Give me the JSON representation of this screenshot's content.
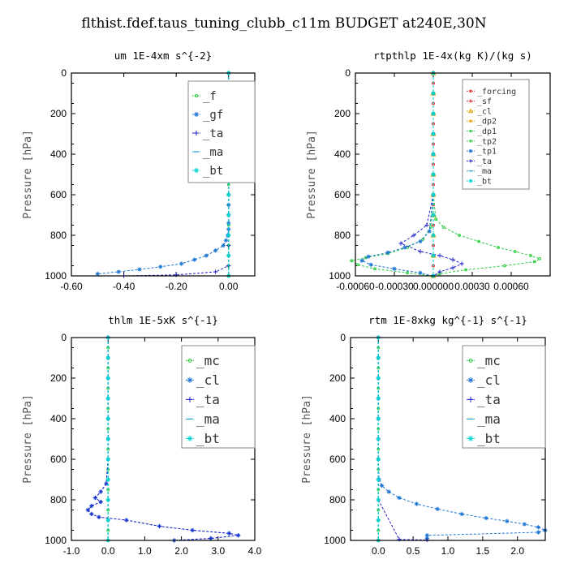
{
  "figure": {
    "title": "flthist.fdef.taus_tuning_clubb_c11m  BUDGET at240E,30N"
  },
  "colors": {
    "f": "#2ecc40",
    "gf": "#1f77d4",
    "ta": "#2222cc",
    "ma": "#1f9fd4",
    "bt": "#00d5d5",
    "forcing": "#d62728",
    "sf": "#d62728",
    "cl": "#e8a000",
    "dp2": "#e8a000",
    "dp1": "#2ecc40",
    "tp2": "#2ecc40",
    "tp1": "#1f77d4",
    "mc": "#2ecc40",
    "cl2": "#1f77d4"
  },
  "chart_data": [
    {
      "type": "line",
      "title": "um  1E-4xm s^{-2}",
      "ylabel": "Pressure [hPa]",
      "xlim": [
        -0.6,
        0.1
      ],
      "ylim": [
        1000,
        0
      ],
      "xticks": [
        "-0.60",
        "-0.40",
        "-0.20",
        "0.00"
      ],
      "xtick_values": [
        -0.6,
        -0.4,
        -0.2,
        0.0
      ],
      "yticks": [
        "0",
        "200",
        "400",
        "600",
        "800",
        "1000"
      ],
      "legend_position": "top-right",
      "series": [
        {
          "name": "_f",
          "color_key": "f",
          "marker": "o",
          "x": [
            0,
            0,
            0,
            0,
            0,
            0,
            0,
            0,
            0,
            0,
            0,
            0,
            0,
            0,
            0,
            0,
            0,
            0,
            0,
            0,
            0
          ],
          "y": [
            0,
            50,
            100,
            150,
            200,
            250,
            300,
            350,
            400,
            450,
            500,
            550,
            600,
            650,
            700,
            750,
            800,
            850,
            900,
            950,
            1000
          ]
        },
        {
          "name": "_gf",
          "color_key": "gf",
          "marker": "*",
          "x": [
            0.0,
            0.0,
            0.0,
            0.0,
            0.0,
            0.0,
            0.0,
            0.0,
            0.0,
            0.0,
            0.0,
            -0.003,
            -0.01,
            -0.02,
            -0.05,
            -0.085,
            -0.13,
            -0.18,
            -0.26,
            -0.34,
            -0.42,
            -0.5
          ],
          "y": [
            0,
            100,
            200,
            300,
            400,
            500,
            600,
            650,
            700,
            740,
            770,
            800,
            825,
            850,
            875,
            900,
            920,
            940,
            955,
            968,
            980,
            990
          ]
        },
        {
          "name": "_ta",
          "color_key": "ta",
          "marker": "+",
          "x": [
            0,
            0,
            0,
            0,
            0,
            0,
            0,
            0,
            0,
            0,
            0,
            0,
            -0.05,
            -0.2,
            -0.4
          ],
          "y": [
            0,
            100,
            200,
            300,
            400,
            500,
            600,
            700,
            800,
            850,
            900,
            950,
            980,
            995,
            1000
          ]
        },
        {
          "name": "_ma",
          "color_key": "ma",
          "marker": "-",
          "x": [
            0,
            0,
            0,
            0,
            0,
            0,
            0,
            0,
            0,
            0,
            0
          ],
          "y": [
            0,
            100,
            200,
            300,
            400,
            500,
            600,
            700,
            800,
            900,
            1000
          ]
        },
        {
          "name": "_bt",
          "color_key": "bt",
          "marker": "*",
          "x": [
            0,
            0,
            0,
            0,
            0,
            0,
            0,
            0,
            0,
            0,
            0
          ],
          "y": [
            0,
            100,
            200,
            300,
            400,
            500,
            600,
            700,
            800,
            900,
            1000
          ]
        }
      ]
    },
    {
      "type": "line",
      "title": "rtpthlp  1E-4x(kg K)/(kg s)",
      "ylabel": "Pressure [hPa]",
      "xlim": [
        -0.0006,
        0.0009
      ],
      "ylim": [
        1000,
        0
      ],
      "xticks": [
        "-0.00060",
        "-0.00030",
        "0.000000",
        "0.00030",
        "0.00060"
      ],
      "xtick_values": [
        -0.0006,
        -0.0003,
        0.0,
        0.0003,
        0.0006
      ],
      "yticks": [
        "0",
        "200",
        "400",
        "600",
        "800",
        "1000"
      ],
      "legend_position": "top-right",
      "series": [
        {
          "name": "_forcing",
          "color_key": "forcing",
          "marker": "o",
          "x": [
            0,
            0,
            0,
            0,
            0,
            0,
            0,
            0,
            0,
            0,
            0,
            0,
            0,
            0,
            0,
            0,
            0,
            0,
            0,
            0,
            0
          ],
          "y": [
            0,
            50,
            100,
            150,
            200,
            250,
            300,
            350,
            400,
            450,
            500,
            550,
            600,
            650,
            700,
            750,
            800,
            850,
            900,
            950,
            1000
          ]
        },
        {
          "name": "_sf",
          "color_key": "sf",
          "marker": "+",
          "x": [
            0,
            0,
            0,
            0,
            0,
            0,
            0,
            0,
            0,
            0,
            0
          ],
          "y": [
            0,
            100,
            200,
            300,
            400,
            500,
            600,
            700,
            800,
            900,
            1000
          ]
        },
        {
          "name": "_cl",
          "color_key": "cl",
          "marker": "^",
          "x": [
            0,
            0,
            0,
            0,
            0,
            0,
            0,
            0,
            0,
            0,
            0
          ],
          "y": [
            0,
            100,
            200,
            300,
            400,
            500,
            600,
            700,
            800,
            900,
            1000
          ]
        },
        {
          "name": "_dp2",
          "color_key": "dp2",
          "marker": "o",
          "x": [
            0,
            0,
            0,
            0,
            0,
            0,
            0,
            0,
            0,
            0,
            0
          ],
          "y": [
            0,
            100,
            200,
            300,
            400,
            500,
            600,
            700,
            800,
            900,
            1000
          ]
        },
        {
          "name": "_dp1",
          "color_key": "dp1",
          "marker": "o",
          "x": [
            0,
            0,
            0,
            0,
            0,
            0,
            0,
            2e-05,
            8e-05,
            0.0002,
            0.00035,
            0.0005,
            0.00063,
            0.00075,
            0.00082,
            0.00078,
            0.00055,
            0.00025,
            5e-05,
            0
          ],
          "y": [
            0,
            100,
            200,
            300,
            400,
            500,
            600,
            720,
            760,
            800,
            830,
            860,
            880,
            900,
            915,
            930,
            950,
            970,
            990,
            1000
          ]
        },
        {
          "name": "_tp2",
          "color_key": "tp2",
          "marker": "o",
          "x": [
            0,
            0,
            0,
            0,
            0,
            0,
            0,
            -2e-05,
            -8e-05,
            -0.0002,
            -0.00035,
            -0.00052,
            -0.00063,
            -0.00058,
            -0.00045,
            -0.0002,
            0
          ],
          "y": [
            0,
            100,
            200,
            300,
            400,
            500,
            600,
            760,
            820,
            860,
            890,
            910,
            925,
            945,
            965,
            985,
            1000
          ]
        },
        {
          "name": "_tp1",
          "color_key": "tp1",
          "marker": "*",
          "x": [
            0,
            0,
            0,
            0,
            0,
            0,
            0,
            -3e-05,
            -0.0001,
            -0.00022,
            -0.00035,
            -0.0005,
            -0.00055,
            -0.00048,
            -0.0003,
            -0.0001,
            0
          ],
          "y": [
            0,
            100,
            200,
            300,
            400,
            500,
            600,
            780,
            830,
            860,
            885,
            905,
            925,
            945,
            965,
            985,
            1000
          ]
        },
        {
          "name": "_ta",
          "color_key": "ta",
          "marker": "+",
          "x": [
            0,
            0,
            0,
            0,
            0,
            0,
            0,
            -5e-05,
            -0.00015,
            -0.00025,
            -0.0001,
            5e-05,
            0.00015,
            0.00022,
            0.00015,
            5e-05,
            0
          ],
          "y": [
            0,
            100,
            200,
            300,
            400,
            500,
            600,
            750,
            800,
            840,
            880,
            900,
            920,
            940,
            960,
            980,
            1000
          ]
        },
        {
          "name": "_ma",
          "color_key": "ma",
          "marker": "-",
          "x": [
            0,
            0,
            0,
            0,
            0,
            0,
            0,
            0,
            0,
            0,
            0
          ],
          "y": [
            0,
            100,
            200,
            300,
            400,
            500,
            600,
            700,
            800,
            900,
            1000
          ]
        },
        {
          "name": "_bt",
          "color_key": "bt",
          "marker": "*",
          "x": [
            0,
            0,
            0,
            0,
            0,
            0,
            0,
            0,
            0,
            0,
            0
          ],
          "y": [
            0,
            100,
            200,
            300,
            400,
            500,
            600,
            700,
            800,
            900,
            1000
          ]
        }
      ]
    },
    {
      "type": "line",
      "title": "thlm  1E-5xK s^{-1}",
      "ylabel": "Pressure [hPa]",
      "xlim": [
        -1.0,
        4.0
      ],
      "ylim": [
        1000,
        0
      ],
      "xticks": [
        "-1.0",
        "0.0",
        "1.0",
        "2.0",
        "3.0",
        "4.0"
      ],
      "xtick_values": [
        -1.0,
        0.0,
        1.0,
        2.0,
        3.0,
        4.0
      ],
      "yticks": [
        "0",
        "200",
        "400",
        "600",
        "800",
        "1000"
      ],
      "legend_position": "top-right",
      "series": [
        {
          "name": "_mc",
          "color_key": "mc",
          "marker": "o",
          "x": [
            0,
            0,
            0,
            0,
            0,
            0,
            0,
            0,
            0,
            0,
            0,
            0,
            0,
            0,
            0,
            0,
            0,
            0,
            0,
            0,
            0
          ],
          "y": [
            0,
            50,
            100,
            150,
            200,
            250,
            300,
            350,
            400,
            450,
            500,
            550,
            600,
            650,
            700,
            750,
            800,
            850,
            900,
            950,
            1000
          ]
        },
        {
          "name": "_cl",
          "color_key": "cl2",
          "marker": "*",
          "x": [
            0,
            0,
            0,
            0,
            0,
            0,
            0,
            -0.05,
            -0.2,
            -0.35,
            -0.2,
            -0.45,
            -0.55,
            -0.45,
            -0.25,
            0.5,
            1.4,
            2.3,
            3.3,
            3.55,
            2.8,
            1.8
          ],
          "y": [
            0,
            100,
            200,
            300,
            400,
            500,
            600,
            720,
            760,
            790,
            810,
            830,
            850,
            870,
            885,
            900,
            930,
            950,
            965,
            975,
            990,
            1000
          ]
        },
        {
          "name": "_ta",
          "color_key": "ta",
          "marker": "+",
          "x": [
            0,
            0,
            0,
            0,
            0,
            0,
            0,
            -0.05,
            -0.2,
            -0.35,
            -0.2,
            -0.45,
            -0.55,
            -0.45,
            -0.25,
            0.5,
            1.4,
            2.3,
            3.3,
            3.55,
            2.8,
            1.8
          ],
          "y": [
            0,
            100,
            200,
            300,
            400,
            500,
            600,
            720,
            760,
            790,
            810,
            830,
            850,
            870,
            885,
            900,
            930,
            950,
            965,
            975,
            990,
            1000
          ]
        },
        {
          "name": "_ma",
          "color_key": "ma",
          "marker": "-",
          "x": [
            0,
            0,
            0,
            0,
            0,
            0,
            0,
            0,
            0,
            0,
            0
          ],
          "y": [
            0,
            100,
            200,
            300,
            400,
            500,
            600,
            700,
            800,
            900,
            1000
          ]
        },
        {
          "name": "_bt",
          "color_key": "bt",
          "marker": "*",
          "x": [
            0,
            0,
            0,
            0,
            0,
            0,
            0,
            0,
            0,
            0,
            0
          ],
          "y": [
            0,
            100,
            200,
            300,
            400,
            500,
            600,
            700,
            800,
            900,
            1000
          ]
        }
      ]
    },
    {
      "type": "line",
      "title": "rtm  1E-8xkg kg^{-1} s^{-1}",
      "ylabel": "Pressure [hPa]",
      "xlim": [
        -0.4,
        2.4
      ],
      "ylim": [
        1000,
        0
      ],
      "xticks": [
        "0.0",
        "0.5",
        "1.0",
        "1.5",
        "2.0"
      ],
      "xtick_values": [
        0.0,
        0.5,
        1.0,
        1.5,
        2.0
      ],
      "yticks": [
        "0",
        "200",
        "400",
        "600",
        "800",
        "1000"
      ],
      "legend_position": "top-right",
      "series": [
        {
          "name": "_mc",
          "color_key": "mc",
          "marker": "o",
          "x": [
            0,
            0,
            0,
            0,
            0,
            0,
            0,
            0,
            0,
            0,
            0,
            0,
            0,
            0,
            0,
            0,
            0,
            0,
            0,
            0,
            0
          ],
          "y": [
            0,
            50,
            100,
            150,
            200,
            250,
            300,
            350,
            400,
            450,
            500,
            550,
            600,
            650,
            700,
            750,
            800,
            850,
            900,
            950,
            1000
          ]
        },
        {
          "name": "_cl",
          "color_key": "cl2",
          "marker": "*",
          "x": [
            0,
            0,
            0,
            0,
            0,
            0,
            0,
            0.01,
            0.05,
            0.15,
            0.3,
            0.55,
            0.85,
            1.2,
            1.55,
            1.85,
            2.1,
            2.3,
            2.4,
            2.3,
            0.7,
            0.7
          ],
          "y": [
            0,
            100,
            200,
            300,
            400,
            500,
            600,
            700,
            730,
            760,
            790,
            820,
            845,
            870,
            890,
            905,
            920,
            935,
            950,
            960,
            975,
            990
          ]
        },
        {
          "name": "_ta",
          "color_key": "ta",
          "marker": "+",
          "x": [
            0,
            0,
            0,
            0,
            0,
            0,
            0,
            0,
            0,
            0.3,
            0.7
          ],
          "y": [
            0,
            100,
            200,
            300,
            400,
            500,
            600,
            700,
            800,
            995,
            998
          ]
        },
        {
          "name": "_ma",
          "color_key": "ma",
          "marker": "-",
          "x": [
            0,
            0,
            0,
            0,
            0,
            0,
            0,
            0,
            0,
            0,
            0
          ],
          "y": [
            0,
            100,
            200,
            300,
            400,
            500,
            600,
            700,
            800,
            900,
            1000
          ]
        },
        {
          "name": "_bt",
          "color_key": "bt",
          "marker": "*",
          "x": [
            0,
            0,
            0,
            0,
            0,
            0,
            0,
            0,
            0,
            0,
            0
          ],
          "y": [
            0,
            100,
            200,
            300,
            400,
            500,
            600,
            700,
            800,
            900,
            1000
          ]
        }
      ]
    }
  ]
}
